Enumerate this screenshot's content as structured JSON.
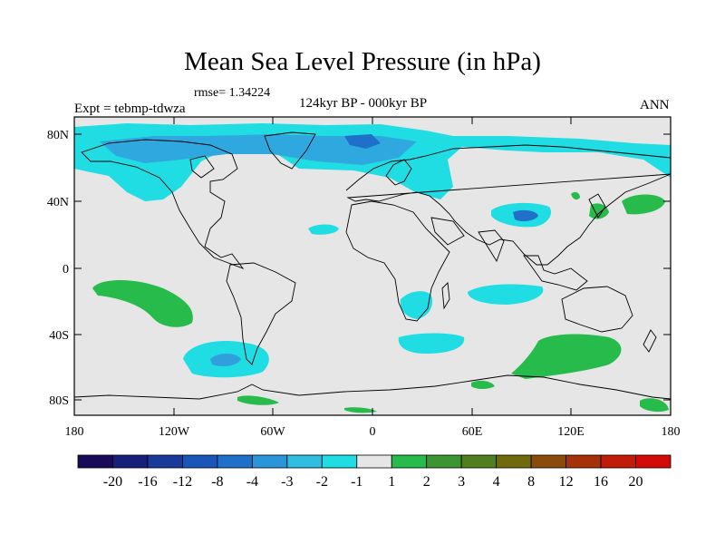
{
  "title": "Mean Sea Level Pressure (in hPa)",
  "rmse": "rmse= 1.34224",
  "expt": "Expt = tebmp-tdwza",
  "period": "124kyr BP - 000kyr BP",
  "season": "ANN",
  "lat_labels": [
    "80N",
    "40N",
    "0",
    "40S",
    "80S"
  ],
  "lon_labels": [
    "180",
    "120W",
    "60W",
    "0",
    "60E",
    "120E",
    "180"
  ],
  "colorbar": {
    "labels": [
      "-20",
      "-16",
      "-12",
      "-8",
      "-4",
      "-3",
      "-2",
      "-1",
      "1",
      "2",
      "3",
      "4",
      "8",
      "12",
      "16",
      "20"
    ],
    "colors": [
      "#1a0a5a",
      "#16207a",
      "#1a3a9a",
      "#1a55b8",
      "#1f70c8",
      "#2a95d8",
      "#2fbde2",
      "#1fdde3",
      "#e6e6e6",
      "#27bb4c",
      "#3c9532",
      "#517f1e",
      "#706a0e",
      "#8a4c0a",
      "#a63008",
      "#c01c08",
      "#d20a08"
    ],
    "low_color": "#1a0a5a",
    "high_color": "#d20a08"
  },
  "colors": {
    "land_background": "#e6e6e6",
    "cyan": "#1fdde3",
    "mid_blue": "#2fb0e0",
    "blue": "#1f70c8",
    "green": "#27bb4c"
  }
}
